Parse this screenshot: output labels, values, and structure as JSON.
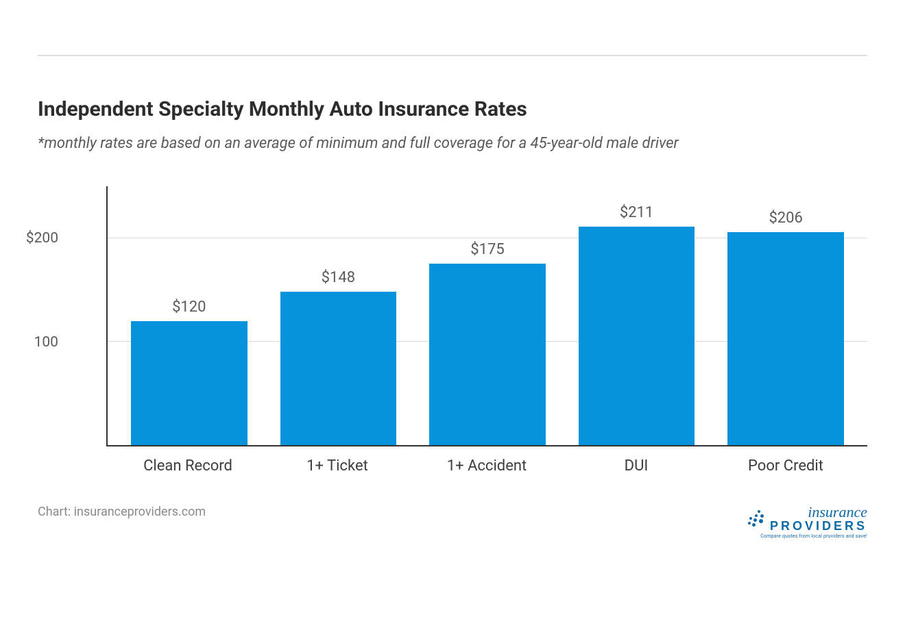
{
  "title": "Independent Specialty Monthly Auto Insurance Rates",
  "subtitle": "*monthly rates are based on an average of minimum and full coverage for a 45-year-old male driver",
  "chart": {
    "type": "bar",
    "categories": [
      "Clean Record",
      "1+ Ticket",
      "1+ Accident",
      "DUI",
      "Poor Credit"
    ],
    "values": [
      120,
      148,
      175,
      211,
      206
    ],
    "value_labels": [
      "$120",
      "$148",
      "$175",
      "$211",
      "$206"
    ],
    "bar_color": "#0593dc",
    "bar_width_pct": 78,
    "y_axis": {
      "min": 0,
      "max": 250,
      "ticks": [
        {
          "value": 100,
          "label": "100"
        },
        {
          "value": 200,
          "label": "$200"
        }
      ]
    },
    "grid_color": "#d9d9d9",
    "axis_color": "#333333",
    "background_color": "#ffffff",
    "title_fontsize": 30,
    "subtitle_fontsize": 22,
    "label_fontsize": 22,
    "value_label_color": "#5a5a5a",
    "x_label_color": "#3d3d3d"
  },
  "footer": {
    "credit": "Chart: insuranceproviders.com",
    "logo_line1": "insurance",
    "logo_line2": "PROVIDERS",
    "logo_tagline": "Compare quotes from local providers and save!"
  }
}
